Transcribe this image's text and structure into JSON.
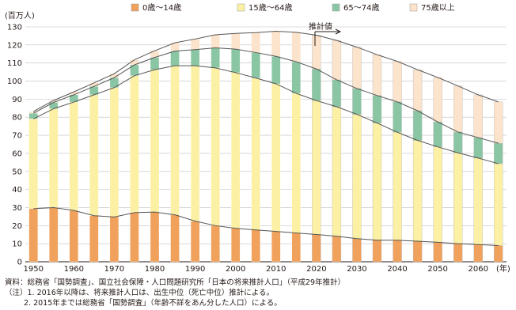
{
  "chart_data": {
    "type": "bar",
    "stacked": true,
    "title": "",
    "ylabel": "(百万人)",
    "xlabel": "(年)",
    "ylim": [
      0,
      130
    ],
    "yticks": [
      0,
      10,
      20,
      30,
      40,
      50,
      60,
      70,
      80,
      90,
      100,
      110,
      120,
      130
    ],
    "xtick_labels": [
      "1950",
      "1960",
      "1970",
      "1980",
      "1990",
      "2000",
      "2010",
      "2020",
      "2030",
      "2040",
      "2050",
      "2060"
    ],
    "legend_position": "top",
    "grid": true,
    "annotation": "推計値",
    "annotation_from_year": 2016,
    "categories": [
      1950,
      1955,
      1960,
      1965,
      1970,
      1975,
      1980,
      1985,
      1990,
      1995,
      2000,
      2005,
      2010,
      2015,
      2020,
      2025,
      2030,
      2035,
      2040,
      2045,
      2050,
      2055,
      2060,
      2065
    ],
    "projected_from_index": 14,
    "series": [
      {
        "name": "0歳～14歳",
        "color": "#F0A15C",
        "values": [
          29.4,
          30.0,
          28.4,
          25.5,
          24.8,
          27.2,
          27.5,
          26.0,
          22.5,
          20.0,
          18.5,
          17.6,
          16.8,
          15.9,
          15.1,
          14.1,
          12.8,
          11.9,
          11.9,
          11.4,
          10.8,
          10.0,
          9.5,
          9.0
        ]
      },
      {
        "name": "15歳～64歳",
        "color": "#FBF0A3",
        "values": [
          49.7,
          54.7,
          60.0,
          66.9,
          71.6,
          75.8,
          78.8,
          82.5,
          86.0,
          87.3,
          86.2,
          84.1,
          81.7,
          77.3,
          74.1,
          71.7,
          68.8,
          64.9,
          59.8,
          55.8,
          52.8,
          50.3,
          47.9,
          45.3
        ]
      },
      {
        "name": "65～74歳",
        "color": "#8BC6A4",
        "values": [
          3.1,
          3.5,
          4.0,
          4.7,
          5.5,
          6.0,
          6.8,
          8.1,
          8.9,
          11.1,
          13.0,
          14.1,
          15.2,
          17.5,
          17.5,
          14.9,
          14.3,
          15.2,
          16.8,
          16.4,
          13.8,
          11.5,
          11.3,
          11.3
        ]
      },
      {
        "name": "75歳以上",
        "color": "#FCE3CB",
        "values": [
          1.0,
          1.1,
          1.6,
          1.9,
          2.2,
          2.8,
          3.7,
          4.6,
          5.9,
          7.2,
          8.7,
          11.0,
          13.9,
          16.3,
          18.7,
          21.8,
          22.9,
          22.6,
          22.4,
          22.7,
          24.6,
          25.5,
          23.7,
          22.9
        ]
      }
    ],
    "total_line_color": "#555555",
    "projection_bar_border": "#BBBBBB",
    "notes": [
      "資料：総務省「国勢調査」、国立社会保障・人口問題研究所「日本の将来推計人口」（平成29年推計）",
      "（注）1. 2016年以降は、将来推計人口は、出生中位（死亡中位）推計による。",
      "2. 2015年までは総務省「国勢調査」（年齢不詳をあん分した人口）による。"
    ]
  }
}
